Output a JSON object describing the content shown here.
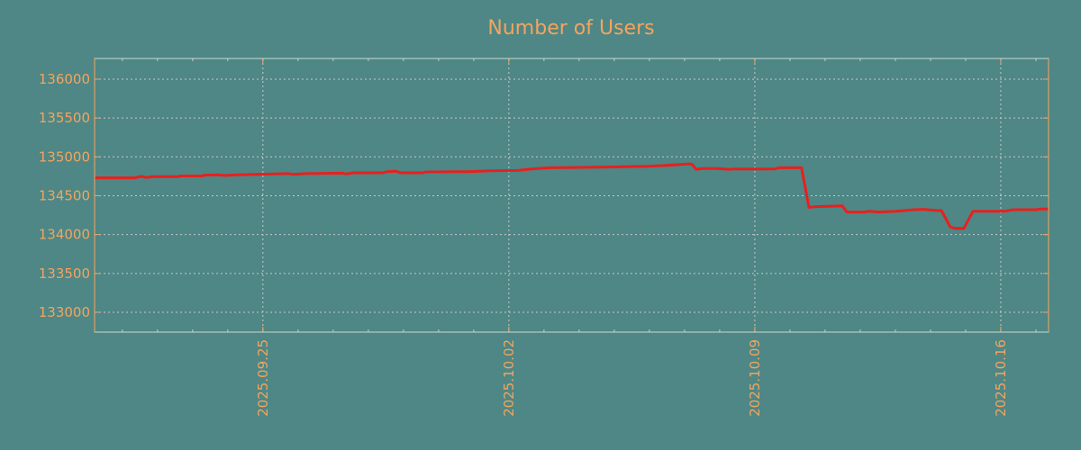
{
  "chart_data": {
    "type": "line",
    "title": "Number of Users",
    "xlabel": "",
    "ylabel": "",
    "x_unit": "days since 2025-09-25",
    "xlim": [
      -4.79,
      22.36
    ],
    "ylim": [
      132745,
      136266
    ],
    "grid": true,
    "colors": {
      "background": "#4e8785",
      "text": "#f4a460",
      "line": "#e8201e",
      "grid": "#c8c8c8",
      "spine": "#f4a460"
    },
    "y_ticks": [
      {
        "value": 133000,
        "label": "133000"
      },
      {
        "value": 133500,
        "label": "133500"
      },
      {
        "value": 134000,
        "label": "134000"
      },
      {
        "value": 134500,
        "label": "134500"
      },
      {
        "value": 135000,
        "label": "135000"
      },
      {
        "value": 135500,
        "label": "135500"
      },
      {
        "value": 136000,
        "label": "136000"
      }
    ],
    "x_ticks": [
      {
        "value": 0,
        "label": "2025.09.25"
      },
      {
        "value": 7,
        "label": "2025.10.02"
      },
      {
        "value": 14,
        "label": "2025.10.09"
      },
      {
        "value": 21,
        "label": "2025.10.16"
      }
    ],
    "series": [
      {
        "name": "Number of Users",
        "points": [
          [
            -4.79,
            134730
          ],
          [
            -3.64,
            134730
          ],
          [
            -3.46,
            134750
          ],
          [
            -3.33,
            134735
          ],
          [
            -3.13,
            134745
          ],
          [
            -2.41,
            134745
          ],
          [
            -2.36,
            134755
          ],
          [
            -1.72,
            134755
          ],
          [
            -1.67,
            134765
          ],
          [
            -1.26,
            134770
          ],
          [
            -1.08,
            134760
          ],
          [
            -0.74,
            134770
          ],
          [
            -0.18,
            134775
          ],
          [
            0.72,
            134785
          ],
          [
            0.85,
            134775
          ],
          [
            1.23,
            134785
          ],
          [
            2.26,
            134790
          ],
          [
            2.38,
            134780
          ],
          [
            2.56,
            134795
          ],
          [
            3.41,
            134795
          ],
          [
            3.54,
            134810
          ],
          [
            3.79,
            134815
          ],
          [
            3.92,
            134795
          ],
          [
            4.56,
            134795
          ],
          [
            4.62,
            134805
          ],
          [
            5.85,
            134810
          ],
          [
            6.49,
            134820
          ],
          [
            7.26,
            134825
          ],
          [
            7.64,
            134845
          ],
          [
            8.15,
            134860
          ],
          [
            9.95,
            134870
          ],
          [
            10.97,
            134880
          ],
          [
            11.49,
            134890
          ],
          [
            12.13,
            134910
          ],
          [
            12.21,
            134905
          ],
          [
            12.33,
            134840
          ],
          [
            12.51,
            134850
          ],
          [
            12.9,
            134850
          ],
          [
            13.28,
            134840
          ],
          [
            13.41,
            134845
          ],
          [
            14.56,
            134845
          ],
          [
            14.69,
            134860
          ],
          [
            15.33,
            134860
          ],
          [
            15.54,
            134350
          ],
          [
            15.72,
            134360
          ],
          [
            16.49,
            134370
          ],
          [
            16.62,
            134290
          ],
          [
            17.13,
            134290
          ],
          [
            17.26,
            134300
          ],
          [
            17.51,
            134290
          ],
          [
            18.03,
            134300
          ],
          [
            18.54,
            134320
          ],
          [
            18.79,
            134325
          ],
          [
            19.18,
            134310
          ],
          [
            19.31,
            134310
          ],
          [
            19.56,
            134100
          ],
          [
            19.69,
            134080
          ],
          [
            19.95,
            134080
          ],
          [
            20.21,
            134300
          ],
          [
            21.1,
            134300
          ],
          [
            21.36,
            134320
          ],
          [
            22.0,
            134320
          ],
          [
            22.13,
            134330
          ],
          [
            22.36,
            134330
          ]
        ]
      }
    ]
  }
}
